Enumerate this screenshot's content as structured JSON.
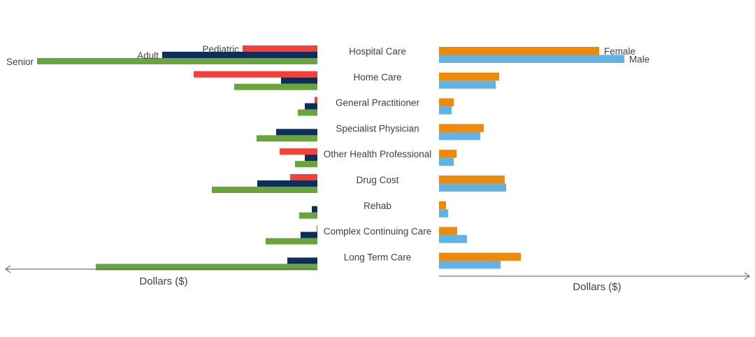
{
  "chart_data": [
    {
      "type": "bar",
      "orientation": "horizontal",
      "direction": "leftward",
      "categories": [
        "Hospital Care",
        "Home Care",
        "General Practitioner",
        "Specialist Physician",
        "Other Health Professional",
        "Drug Cost",
        "Rehab",
        "Complex Continuing Care",
        "Long Term Care"
      ],
      "series": [
        {
          "name": "Pediatric",
          "color": "#f5403a",
          "values": [
            107,
            177,
            4,
            0,
            54,
            39,
            0,
            1,
            0
          ]
        },
        {
          "name": "Adult",
          "color": "#0b2f5a",
          "values": [
            222,
            52,
            18,
            59,
            18,
            86,
            8,
            24,
            43
          ]
        },
        {
          "name": "Senior",
          "color": "#6aa43c",
          "values": [
            401,
            119,
            28,
            87,
            32,
            151,
            26,
            74,
            317
          ]
        }
      ],
      "xlabel": "Dollars ($)",
      "ylabel": "",
      "xlim": [
        0,
        446
      ],
      "legend": "inline labels at top bars",
      "grid": false
    },
    {
      "type": "bar",
      "orientation": "horizontal",
      "direction": "rightward",
      "categories": [
        "Hospital Care",
        "Home Care",
        "General Practitioner",
        "Specialist Physician",
        "Other Health Professional",
        "Drug Cost",
        "Rehab",
        "Complex Continuing Care",
        "Long Term Care"
      ],
      "series": [
        {
          "name": "Female",
          "color": "#ee8a0a",
          "values": [
            229,
            86,
            21,
            64,
            25,
            94,
            10,
            26,
            117
          ]
        },
        {
          "name": "Male",
          "color": "#62b3e3",
          "values": [
            265,
            81,
            18,
            59,
            21,
            96,
            13,
            40,
            88
          ]
        }
      ],
      "xlabel": "Dollars ($)",
      "ylabel": "",
      "xlim": [
        0,
        444
      ],
      "legend": "inline labels at top bars",
      "grid": false
    }
  ]
}
